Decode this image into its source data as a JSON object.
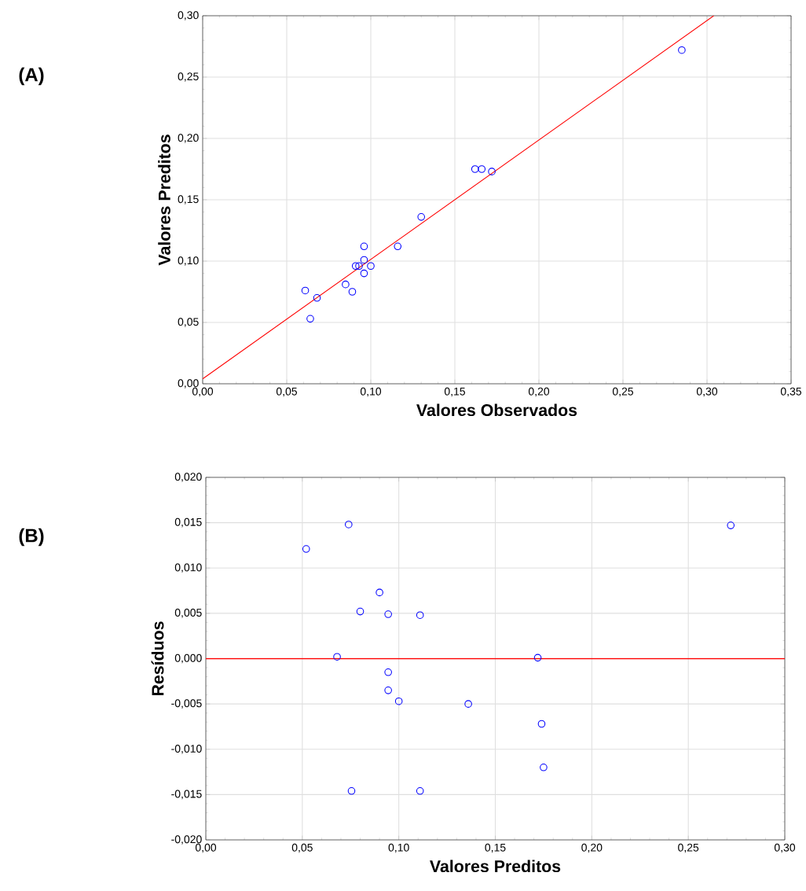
{
  "chart_data": [
    {
      "type": "scatter",
      "xlabel": "Valores Observados",
      "ylabel": "Valores Preditos",
      "annotations": [
        "(A)"
      ],
      "grid": true,
      "marker": "circle",
      "xlim": [
        0,
        0.35
      ],
      "ylim": [
        0,
        0.3
      ],
      "xticks": [
        {
          "value": 0,
          "label": "0,00"
        },
        {
          "value": 0.05,
          "label": "0,05"
        },
        {
          "value": 0.1,
          "label": "0,10"
        },
        {
          "value": 0.15,
          "label": "0,15"
        },
        {
          "value": 0.2,
          "label": "0,20"
        },
        {
          "value": 0.25,
          "label": "0,25"
        },
        {
          "value": 0.3,
          "label": "0,30"
        },
        {
          "value": 0.35,
          "label": "0,35"
        }
      ],
      "yticks": [
        {
          "value": 0,
          "label": "0,00"
        },
        {
          "value": 0.05,
          "label": "0,05"
        },
        {
          "value": 0.1,
          "label": "0,10"
        },
        {
          "value": 0.15,
          "label": "0,15"
        },
        {
          "value": 0.2,
          "label": "0,20"
        },
        {
          "value": 0.25,
          "label": "0,25"
        },
        {
          "value": 0.3,
          "label": "0,30"
        }
      ],
      "series": [
        {
          "color": "#0000ff",
          "x": [
            0.061,
            0.064,
            0.068,
            0.085,
            0.089,
            0.091,
            0.093,
            0.096,
            0.096,
            0.096,
            0.1,
            0.116,
            0.13,
            0.162,
            0.166,
            0.172,
            0.285
          ],
          "values": [
            0.076,
            0.053,
            0.07,
            0.081,
            0.075,
            0.096,
            0.096,
            0.101,
            0.112,
            0.09,
            0.096,
            0.112,
            0.136,
            0.175,
            0.175,
            0.173,
            0.272
          ]
        },
        {
          "type": "line",
          "marker": "none",
          "color": "#ff0000",
          "x": [
            0,
            0.304
          ],
          "values": [
            0.004,
            0.3
          ]
        }
      ]
    },
    {
      "type": "scatter",
      "xlabel": "Valores Preditos",
      "ylabel": "Resíduos",
      "annotations": [
        "(B)"
      ],
      "grid": true,
      "marker": "circle",
      "xlim": [
        0,
        0.3
      ],
      "ylim": [
        -0.02,
        0.02
      ],
      "xticks": [
        {
          "value": 0,
          "label": "0,00"
        },
        {
          "value": 0.05,
          "label": "0,05"
        },
        {
          "value": 0.1,
          "label": "0,10"
        },
        {
          "value": 0.15,
          "label": "0,15"
        },
        {
          "value": 0.2,
          "label": "0,20"
        },
        {
          "value": 0.25,
          "label": "0,25"
        },
        {
          "value": 0.3,
          "label": "0,30"
        }
      ],
      "yticks": [
        {
          "value": -0.02,
          "label": "-0,020"
        },
        {
          "value": -0.015,
          "label": "-0,015"
        },
        {
          "value": -0.01,
          "label": "-0,010"
        },
        {
          "value": -0.005,
          "label": "-0,005"
        },
        {
          "value": 0,
          "label": "0,000"
        },
        {
          "value": 0.005,
          "label": "0,005"
        },
        {
          "value": 0.01,
          "label": "0,010"
        },
        {
          "value": 0.015,
          "label": "0,015"
        },
        {
          "value": 0.02,
          "label": "0,020"
        }
      ],
      "ref_lines": [
        {
          "axis": "y",
          "value": 0,
          "color": "#ff0000"
        }
      ],
      "series": [
        {
          "color": "#0000ff",
          "x": [
            0.052,
            0.074,
            0.09,
            0.08,
            0.0945,
            0.111,
            0.068,
            0.0945,
            0.0945,
            0.1,
            0.136,
            0.0755,
            0.111,
            0.272,
            0.172,
            0.174,
            0.175
          ],
          "values": [
            0.0121,
            0.0148,
            0.0073,
            0.0052,
            0.0049,
            0.0048,
            0.0002,
            -0.0015,
            -0.0035,
            -0.0047,
            -0.005,
            -0.0146,
            -0.0146,
            0.0147,
            0.0001,
            -0.0072,
            -0.012
          ]
        }
      ]
    }
  ]
}
